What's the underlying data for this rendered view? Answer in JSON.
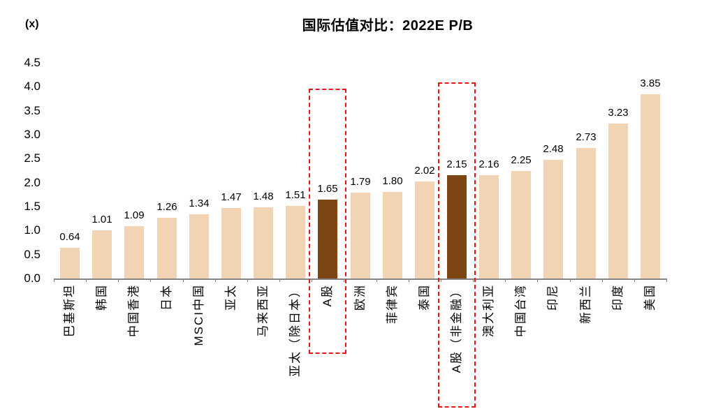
{
  "chart": {
    "title": "国际估值对比：2022E P/B",
    "unit_label": "(x)"
  },
  "chart_data": {
    "type": "bar",
    "title": "国际估值对比：2022E P/B",
    "ylabel": "(x)",
    "xlabel": "",
    "ylim": [
      0.0,
      4.5
    ],
    "ytick_interval": 0.5,
    "ytick_labels": [
      "0.0",
      "0.5",
      "1.0",
      "1.5",
      "2.0",
      "2.5",
      "3.0",
      "3.5",
      "4.0",
      "4.5"
    ],
    "grid": false,
    "legend_position": "none",
    "categories": [
      "巴基斯坦",
      "韩国",
      "中国香港",
      "日本",
      "MSCI中国",
      "亚太",
      "马来西亚",
      "亚太（除日本）",
      "A股",
      "欧洲",
      "菲律宾",
      "泰国",
      "A股（非金融）",
      "澳大利亚",
      "中国台湾",
      "印尼",
      "新西兰",
      "印度",
      "美国"
    ],
    "values": [
      0.64,
      1.01,
      1.09,
      1.26,
      1.34,
      1.47,
      1.48,
      1.51,
      1.65,
      1.79,
      1.8,
      2.02,
      2.15,
      2.16,
      2.25,
      2.48,
      2.73,
      3.23,
      3.85
    ],
    "value_labels": [
      "0.64",
      "1.01",
      "1.09",
      "1.26",
      "1.34",
      "1.47",
      "1.48",
      "1.51",
      "1.65",
      "1.79",
      "1.80",
      "2.02",
      "2.15",
      "2.16",
      "2.25",
      "2.48",
      "2.73",
      "3.23",
      "3.85"
    ],
    "highlighted_categories": [
      "A股",
      "A股（非金融）"
    ],
    "highlight_indexes": [
      8,
      12
    ],
    "colors": {
      "bar": "#F2D4B5",
      "highlight_bar": "#7D4511",
      "highlight_box": "#EC1515",
      "axis": "#848484",
      "text": "#000000",
      "background": "#FFFFFF"
    }
  }
}
